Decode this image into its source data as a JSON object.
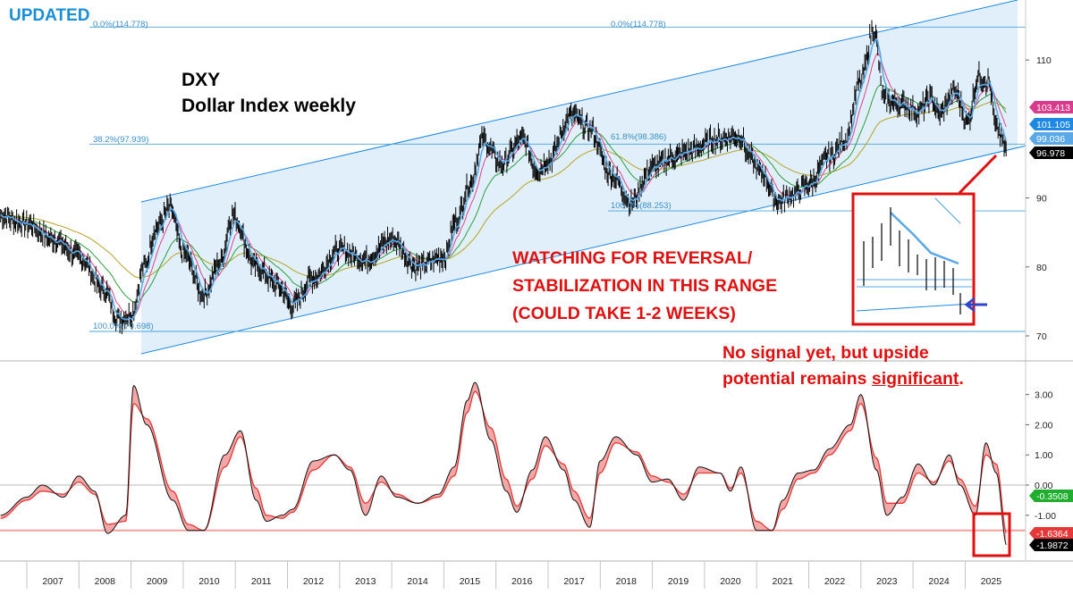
{
  "badge": "UPDATED",
  "title": {
    "symbol": "DXY",
    "subtitle": "Dollar Index weekly"
  },
  "annotations": {
    "watch_line1": "WATCHING FOR REVERSAL/",
    "watch_line2": "STABILIZATION IN THIS RANGE",
    "watch_line3": "(COULD TAKE 1-2 WEEKS)",
    "signal_line1": "No signal yet, but upside",
    "signal_line2_pre": "potential remains ",
    "signal_line2_emph": "significant",
    "signal_line2_post": "."
  },
  "fib_labels": {
    "f0_left": "0.0%(114.778)",
    "f0_right": "0.0%(114.778)",
    "f382": "38.2%(97.939)",
    "f618": "61.8%(98.386)",
    "f100_mid": "100.0%(88.253)",
    "f100_left": "100.0%(70.698)"
  },
  "colors": {
    "price": "#000000",
    "ema_fast": "#5aa9e6",
    "ema_mid": "#e0458a",
    "ema_slow": "#2e9e3e",
    "ema_long": "#b5a32a",
    "channel": "#1e88e5",
    "channel_fill": "#d6e9f8",
    "fib": "#4aa3d9",
    "annotation": "#e01010",
    "osc_line": "#111111",
    "osc_signal": "#e63838",
    "osc_fill": "#f4a7a7"
  },
  "chart_data": [
    {
      "type": "line",
      "title": "DXY",
      "ylim": [
        67,
        118
      ],
      "yticks": [
        70,
        80,
        90,
        110
      ],
      "x_axis_labels": [
        "2007",
        "2008",
        "2009",
        "2010",
        "2011",
        "2012",
        "2013",
        "2014",
        "2015",
        "2016",
        "2017",
        "2018",
        "2019",
        "2020",
        "2021",
        "2022",
        "2023",
        "2024",
        "2025"
      ],
      "x": [
        2006.0,
        2006.5,
        2007.0,
        2007.5,
        2008.0,
        2008.25,
        2008.5,
        2008.75,
        2009.0,
        2009.25,
        2009.5,
        2009.9,
        2010.2,
        2010.45,
        2010.9,
        2011.3,
        2011.6,
        2012.0,
        2012.5,
        2013.0,
        2013.5,
        2014.0,
        2014.5,
        2014.75,
        2015.0,
        2015.25,
        2015.6,
        2016.0,
        2016.3,
        2016.5,
        2016.95,
        2017.3,
        2017.7,
        2018.1,
        2018.5,
        2018.9,
        2019.3,
        2019.7,
        2020.2,
        2020.35,
        2020.6,
        2020.9,
        2021.2,
        2021.5,
        2021.9,
        2022.2,
        2022.5,
        2022.75,
        2022.95,
        2023.3,
        2023.6,
        2023.85,
        2024.0,
        2024.3,
        2024.55,
        2024.75,
        2024.95,
        2025.1,
        2025.3
      ],
      "series": [
        {
          "values": [
            87.5,
            86.2,
            84.0,
            81.5,
            76.5,
            72.5,
            73.0,
            80.0,
            86.0,
            88.5,
            82.0,
            76.0,
            80.5,
            87.5,
            80.0,
            77.5,
            74.5,
            78.5,
            82.5,
            81.0,
            84.0,
            80.0,
            81.5,
            87.0,
            92.0,
            98.5,
            95.0,
            98.5,
            94.0,
            95.5,
            102.0,
            100.0,
            93.5,
            89.5,
            94.5,
            96.0,
            97.0,
            98.5,
            99.0,
            96.0,
            93.5,
            89.5,
            90.5,
            92.0,
            96.0,
            98.5,
            107.0,
            114.5,
            104.0,
            103.5,
            102.5,
            104.5,
            102.0,
            105.5,
            101.0,
            107.5,
            107.0,
            100.0,
            97.0
          ]
        }
      ],
      "last_values": [
        {
          "value": "103.413",
          "color": "#d93a8c"
        },
        {
          "value": "101.105",
          "color": "#1e88e5"
        },
        {
          "value": "99.036",
          "color": "#5aa9e6"
        },
        {
          "value": "96.978",
          "color": "#000000"
        }
      ],
      "fib_levels": [
        114.778,
        97.939,
        98.386,
        88.253,
        70.698
      ]
    },
    {
      "type": "line",
      "title": "",
      "ylim": [
        -2.4,
        3.6
      ],
      "yticks": [
        3.0,
        2.0,
        1.0,
        0.0,
        -1.0
      ],
      "ytick_labels": [
        "3.00",
        "2.00",
        "1.00",
        "0.00",
        "-1.00"
      ],
      "reference_levels": [
        0,
        -1.5
      ],
      "x": [
        2006.0,
        2006.5,
        2006.8,
        2007.2,
        2007.5,
        2007.8,
        2008.05,
        2008.4,
        2008.55,
        2008.8,
        2009.3,
        2009.6,
        2009.9,
        2010.3,
        2010.6,
        2010.9,
        2011.1,
        2011.4,
        2011.6,
        2012.0,
        2012.4,
        2012.7,
        2013.0,
        2013.3,
        2013.6,
        2014.0,
        2014.4,
        2014.7,
        2014.95,
        2015.1,
        2015.4,
        2015.7,
        2015.9,
        2016.2,
        2016.45,
        2016.8,
        2017.0,
        2017.3,
        2017.5,
        2017.8,
        2018.2,
        2018.5,
        2018.8,
        2019.1,
        2019.4,
        2019.8,
        2020.0,
        2020.2,
        2020.5,
        2020.8,
        2021.0,
        2021.3,
        2021.6,
        2021.9,
        2022.3,
        2022.5,
        2022.8,
        2023.0,
        2023.3,
        2023.6,
        2023.9,
        2024.2,
        2024.4,
        2024.7,
        2024.9,
        2025.1,
        2025.3
      ],
      "series": [
        {
          "name": "",
          "values": [
            -1.0,
            -0.4,
            0.0,
            -0.4,
            0.3,
            -0.2,
            -1.6,
            -1.0,
            3.3,
            2.0,
            -0.5,
            -1.5,
            -1.5,
            1.0,
            1.8,
            -0.5,
            -1.2,
            -1.0,
            -0.8,
            0.8,
            1.0,
            0.5,
            -1.0,
            0.3,
            -0.4,
            -0.6,
            -0.3,
            0.6,
            2.8,
            3.4,
            1.5,
            -0.2,
            -0.9,
            0.5,
            1.6,
            0.5,
            -0.5,
            -1.4,
            0.8,
            1.6,
            1.0,
            0.1,
            0.2,
            -0.5,
            0.6,
            0.4,
            -0.2,
            0.6,
            -1.5,
            -1.5,
            -0.5,
            0.4,
            0.5,
            1.2,
            2.0,
            3.0,
            0.5,
            -1.0,
            -0.4,
            0.7,
            0.0,
            1.0,
            0.0,
            -1.0,
            1.4,
            0.4,
            -2.0
          ]
        },
        {
          "name": "",
          "values": [
            -1.1,
            -0.5,
            -0.2,
            -0.3,
            0.1,
            -0.3,
            -1.3,
            -1.2,
            2.7,
            2.2,
            -0.2,
            -1.3,
            -1.5,
            0.6,
            1.6,
            -0.1,
            -1.0,
            -1.1,
            -0.9,
            0.5,
            1.0,
            0.6,
            -0.6,
            0.1,
            -0.3,
            -0.6,
            -0.4,
            0.3,
            2.4,
            3.1,
            1.9,
            0.2,
            -0.7,
            0.2,
            1.3,
            0.7,
            -0.2,
            -1.1,
            0.4,
            1.4,
            1.1,
            0.3,
            0.1,
            -0.3,
            0.4,
            0.4,
            -0.1,
            0.4,
            -1.2,
            -1.5,
            -0.8,
            0.2,
            0.4,
            1.0,
            1.8,
            2.7,
            0.9,
            -0.6,
            -0.6,
            0.4,
            0.1,
            0.8,
            0.2,
            -0.7,
            1.0,
            0.7,
            -1.6
          ]
        }
      ],
      "last_values": [
        {
          "value": "-0.3508",
          "color": "#1fae2e"
        },
        {
          "value": "-1.6364",
          "color": "#e63838"
        },
        {
          "value": "-1.9872",
          "color": "#000000"
        }
      ]
    }
  ]
}
